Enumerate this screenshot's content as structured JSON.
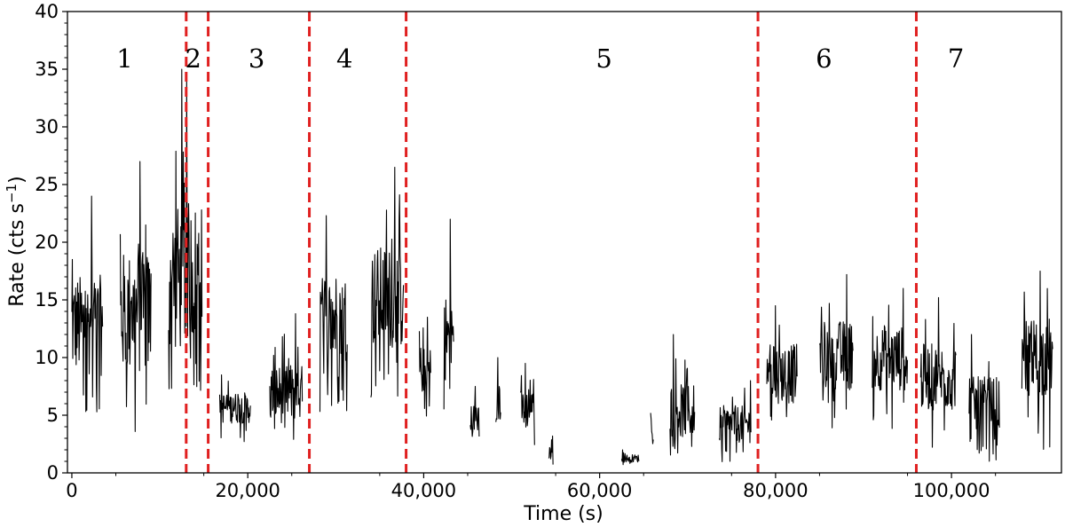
{
  "chart_data": {
    "type": "line",
    "xlabel": "Time (s)",
    "ylabel": "Rate (cts s",
    "ylabel_superscript": "−1",
    "ylabel_close": ")",
    "xlim": [
      -500,
      112500
    ],
    "ylim": [
      0,
      40
    ],
    "x_ticks": [
      0,
      20000,
      40000,
      60000,
      80000,
      100000
    ],
    "x_tick_labels": [
      "0",
      "20,000",
      "40,000",
      "60,000",
      "80,000",
      "100,000"
    ],
    "y_ticks": [
      0,
      5,
      10,
      15,
      20,
      25,
      30,
      35,
      40
    ],
    "y_tick_labels": [
      "0",
      "5",
      "10",
      "15",
      "20",
      "25",
      "30",
      "35",
      "40"
    ],
    "line_color": "#000000",
    "divider_color": "#e02020",
    "dividers_x": [
      13000,
      15500,
      27000,
      38000,
      78000,
      96000
    ],
    "segments": [
      {
        "label": "1",
        "x": 6000
      },
      {
        "label": "2",
        "x": 13800
      },
      {
        "label": "3",
        "x": 21000
      },
      {
        "label": "4",
        "x": 31000
      },
      {
        "label": "5",
        "x": 60500
      },
      {
        "label": "6",
        "x": 85500
      },
      {
        "label": "7",
        "x": 100500
      }
    ],
    "series": [
      {
        "blocks": [
          {
            "x0": 0,
            "x1": 3500,
            "mean": 11,
            "lo": 4.5,
            "hi": 24
          },
          {
            "x0": 5500,
            "x1": 9000,
            "mean": 12,
            "lo": 3,
            "hi": 27
          },
          {
            "x0": 11000,
            "x1": 13000,
            "mean": 13,
            "lo": 6.5,
            "hi": 35
          },
          {
            "x0": 13000,
            "x1": 14800,
            "mean": 14,
            "lo": 7,
            "hi": 34.5
          },
          {
            "x0": 16800,
            "x1": 20300,
            "mean": 5.5,
            "lo": 2.5,
            "hi": 8.5
          },
          {
            "x0": 22500,
            "x1": 26200,
            "mean": 5.5,
            "lo": 2.5,
            "hi": 13.8
          },
          {
            "x0": 28200,
            "x1": 31300,
            "mean": 12.5,
            "lo": 5,
            "hi": 22.3
          },
          {
            "x0": 34000,
            "x1": 37700,
            "mean": 13.5,
            "lo": 6.5,
            "hi": 26.5
          },
          {
            "x0": 39500,
            "x1": 40800,
            "mean": 8.5,
            "lo": 4.5,
            "hi": 13.5
          },
          {
            "x0": 42300,
            "x1": 43400,
            "mean": 10,
            "lo": 5,
            "hi": 22
          },
          {
            "x0": 45300,
            "x1": 46300,
            "mean": 4.5,
            "lo": 2,
            "hi": 7.5
          },
          {
            "x0": 48200,
            "x1": 48800,
            "mean": 6,
            "lo": 2,
            "hi": 10
          },
          {
            "x0": 51000,
            "x1": 52600,
            "mean": 5,
            "lo": 2,
            "hi": 9.5
          },
          {
            "x0": 54200,
            "x1": 54700,
            "mean": 1.5,
            "lo": 0.7,
            "hi": 3.2
          },
          {
            "x0": 62500,
            "x1": 64500,
            "mean": 1.2,
            "lo": 0.5,
            "hi": 2
          },
          {
            "x0": 65800,
            "x1": 66100,
            "mean": 3.5,
            "lo": 2.5,
            "hi": 5.2
          },
          {
            "x0": 68000,
            "x1": 70800,
            "mean": 4,
            "lo": 1.5,
            "hi": 12
          },
          {
            "x0": 73600,
            "x1": 77200,
            "mean": 3.8,
            "lo": 0.8,
            "hi": 8
          },
          {
            "x0": 79000,
            "x1": 82500,
            "mean": 8,
            "lo": 3,
            "hi": 14.5
          },
          {
            "x0": 85000,
            "x1": 88800,
            "mean": 9.5,
            "lo": 3.5,
            "hi": 17.2
          },
          {
            "x0": 91000,
            "x1": 95000,
            "mean": 9.5,
            "lo": 3.5,
            "hi": 16
          },
          {
            "x0": 96500,
            "x1": 100500,
            "mean": 7.5,
            "lo": 2,
            "hi": 15.2
          },
          {
            "x0": 102000,
            "x1": 105500,
            "mean": 5,
            "lo": 1,
            "hi": 12
          },
          {
            "x0": 108000,
            "x1": 111500,
            "mean": 9.5,
            "lo": 2,
            "hi": 17.5
          }
        ]
      }
    ]
  }
}
